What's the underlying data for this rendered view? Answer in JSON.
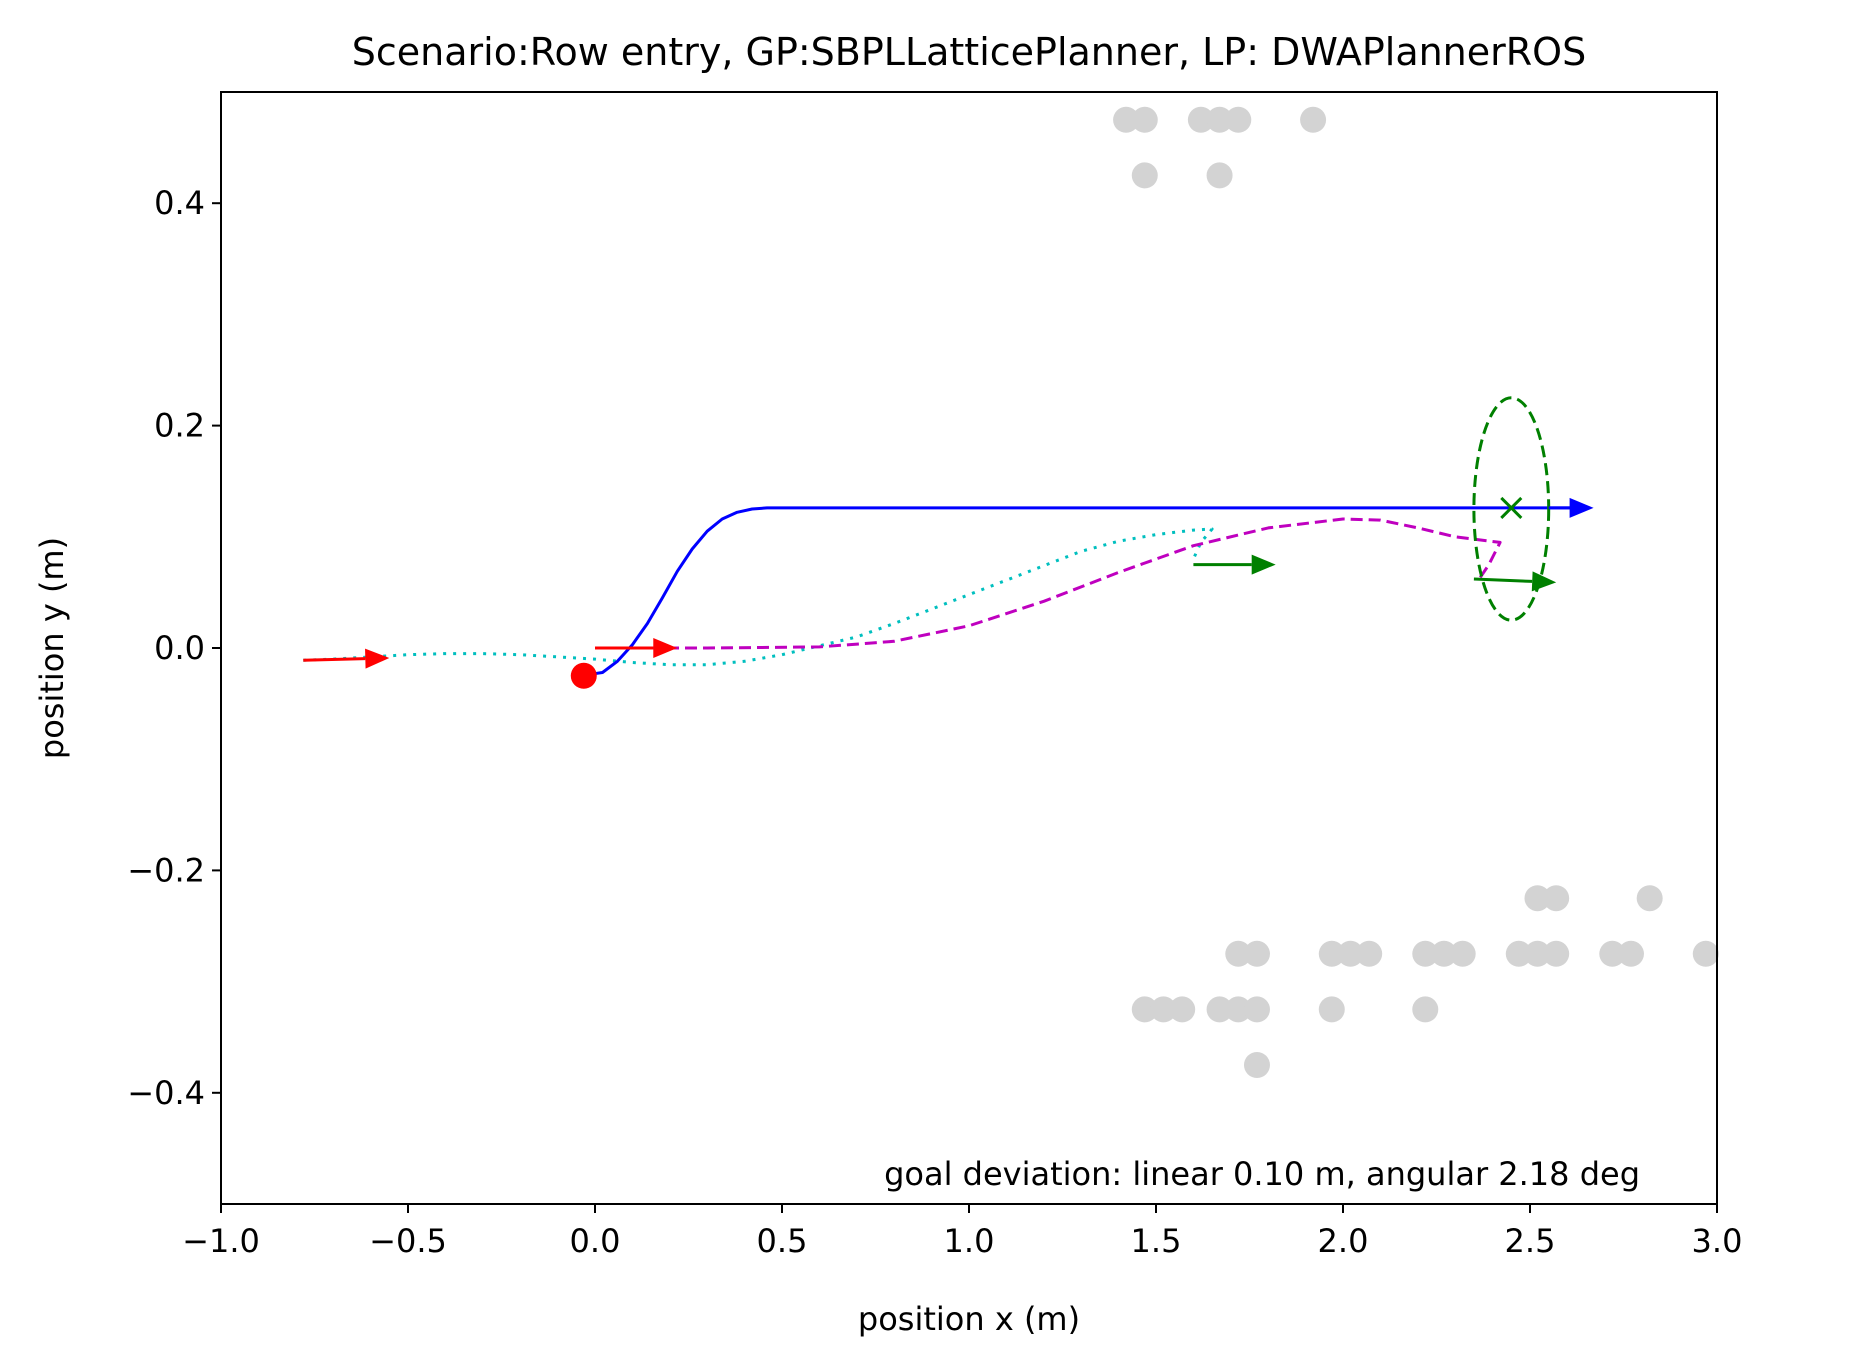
{
  "chart_data": {
    "type": "scatter",
    "title": "Scenario:Row entry, GP:SBPLLatticePlanner, LP: DWAPlannerROS",
    "xlabel": "position x (m)",
    "ylabel": "position y (m)",
    "xlim": [
      -1.0,
      3.0
    ],
    "ylim": [
      -0.5,
      0.5
    ],
    "x_ticks": [
      -1.0,
      -0.5,
      0.0,
      0.5,
      1.0,
      1.5,
      2.0,
      2.5,
      3.0
    ],
    "x_tick_labels": [
      "−1.0",
      "−0.5",
      "0.0",
      "0.5",
      "1.0",
      "1.5",
      "2.0",
      "2.5",
      "3.0"
    ],
    "y_ticks": [
      -0.4,
      -0.2,
      0.0,
      0.2,
      0.4
    ],
    "y_tick_labels": [
      "−0.4",
      "−0.2",
      "0.0",
      "0.2",
      "0.4"
    ],
    "grid": false,
    "annotation": "goal deviation: linear 0.10 m, angular 2.18 deg",
    "colors": {
      "obstacles": "#d3d3d3",
      "global_path": "#0000ff",
      "local_path": "#bf00bf",
      "trajectory": "#00bfbf",
      "start_pose": "#ff0000",
      "goal": "#008000"
    },
    "obstacles": [
      [
        1.42,
        0.475
      ],
      [
        1.47,
        0.475
      ],
      [
        1.62,
        0.475
      ],
      [
        1.67,
        0.475
      ],
      [
        1.72,
        0.475
      ],
      [
        1.92,
        0.475
      ],
      [
        1.47,
        0.425
      ],
      [
        1.67,
        0.425
      ],
      [
        2.52,
        -0.225
      ],
      [
        2.57,
        -0.225
      ],
      [
        2.82,
        -0.225
      ],
      [
        1.72,
        -0.275
      ],
      [
        1.77,
        -0.275
      ],
      [
        1.97,
        -0.275
      ],
      [
        2.02,
        -0.275
      ],
      [
        2.07,
        -0.275
      ],
      [
        2.22,
        -0.275
      ],
      [
        2.27,
        -0.275
      ],
      [
        2.32,
        -0.275
      ],
      [
        2.47,
        -0.275
      ],
      [
        2.52,
        -0.275
      ],
      [
        2.57,
        -0.275
      ],
      [
        2.72,
        -0.275
      ],
      [
        2.77,
        -0.275
      ],
      [
        2.97,
        -0.275
      ],
      [
        1.47,
        -0.325
      ],
      [
        1.52,
        -0.325
      ],
      [
        1.57,
        -0.325
      ],
      [
        1.67,
        -0.325
      ],
      [
        1.72,
        -0.325
      ],
      [
        1.77,
        -0.325
      ],
      [
        1.97,
        -0.325
      ],
      [
        2.22,
        -0.325
      ],
      [
        1.77,
        -0.375
      ]
    ],
    "global_path": {
      "x": [
        -0.02,
        0.02,
        0.06,
        0.1,
        0.14,
        0.18,
        0.22,
        0.26,
        0.3,
        0.34,
        0.38,
        0.42,
        0.46,
        0.5,
        2.62
      ],
      "y": [
        -0.024,
        -0.022,
        -0.012,
        0.003,
        0.022,
        0.045,
        0.069,
        0.089,
        0.105,
        0.116,
        0.122,
        0.125,
        0.126,
        0.126,
        0.126
      ]
    },
    "local_path": {
      "x": [
        0.0,
        0.3,
        0.6,
        0.8,
        1.0,
        1.2,
        1.4,
        1.6,
        1.8,
        2.0,
        2.1,
        2.2,
        2.3,
        2.42,
        2.39,
        2.36
      ],
      "y": [
        0.0,
        0.0,
        0.001,
        0.006,
        0.02,
        0.042,
        0.068,
        0.092,
        0.108,
        0.116,
        0.115,
        0.108,
        0.1,
        0.095,
        0.075,
        0.06
      ]
    },
    "trajectory": {
      "x": [
        -0.78,
        -0.7,
        -0.6,
        -0.5,
        -0.4,
        -0.3,
        -0.2,
        -0.1,
        0.0,
        0.1,
        0.2,
        0.3,
        0.4,
        0.5,
        0.6,
        0.7,
        0.8,
        0.9,
        1.0,
        1.1,
        1.2,
        1.3,
        1.4,
        1.5,
        1.6,
        1.65,
        1.62,
        1.6
      ],
      "y": [
        -0.011,
        -0.01,
        -0.008,
        -0.006,
        -0.005,
        -0.005,
        -0.006,
        -0.008,
        -0.01,
        -0.013,
        -0.015,
        -0.015,
        -0.012,
        -0.006,
        0.002,
        0.01,
        0.022,
        0.035,
        0.048,
        0.061,
        0.074,
        0.087,
        0.096,
        0.102,
        0.106,
        0.107,
        0.095,
        0.08
      ]
    },
    "start_marker": {
      "x": -0.03,
      "y": -0.025
    },
    "goal_marker": {
      "x": 2.45,
      "y": 0.126
    },
    "goal_ellipse": {
      "cx": 2.45,
      "cy": 0.125,
      "rx": 0.1,
      "ry": 0.1
    },
    "arrows": [
      {
        "kind": "start-pose",
        "color": "#ff0000",
        "x": -0.78,
        "y": -0.011,
        "dx": 0.23,
        "dy": 0.002
      },
      {
        "kind": "start-pose",
        "color": "#ff0000",
        "x": 0.0,
        "y": 0.0,
        "dx": 0.22,
        "dy": 0.0
      },
      {
        "kind": "global-goal",
        "color": "#0000ff",
        "x": 2.55,
        "y": 0.126,
        "dx": 0.12,
        "dy": 0.0
      },
      {
        "kind": "goal-pose",
        "color": "#008000",
        "x": 1.6,
        "y": 0.075,
        "dx": 0.22,
        "dy": 0.0
      },
      {
        "kind": "goal-pose",
        "color": "#008000",
        "x": 2.35,
        "y": 0.062,
        "dx": 0.22,
        "dy": -0.003
      }
    ]
  }
}
